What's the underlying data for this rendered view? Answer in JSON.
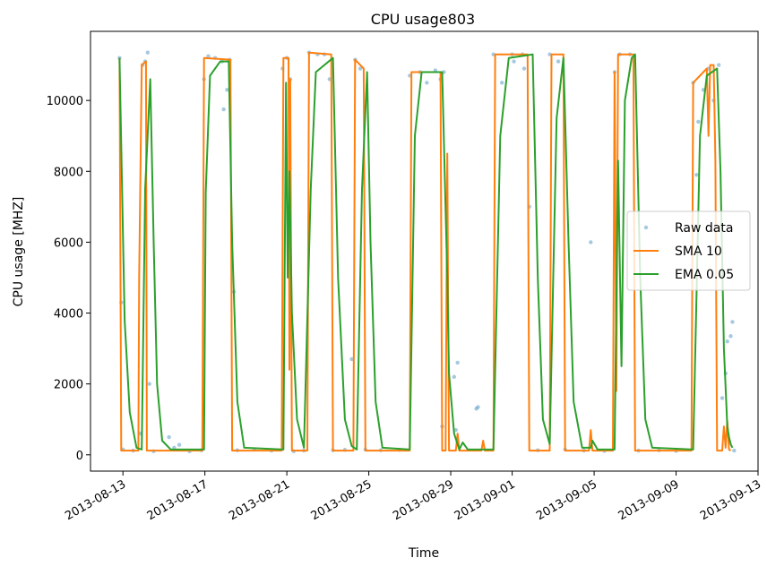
{
  "chart_data": {
    "type": "line",
    "title": "CPU usage803",
    "xlabel": "Time",
    "ylabel": "CPU usage [MHZ]",
    "x_range": [
      "2013-08-11T10:00",
      "2013-09-13T00:00"
    ],
    "ylim": [
      -460,
      11950
    ],
    "x_ticks": [
      {
        "date": "2013-08-13",
        "label": "2013-08-13"
      },
      {
        "date": "2013-08-17",
        "label": "2013-08-17"
      },
      {
        "date": "2013-08-21",
        "label": "2013-08-21"
      },
      {
        "date": "2013-08-25",
        "label": "2013-08-25"
      },
      {
        "date": "2013-08-29",
        "label": "2013-08-29"
      },
      {
        "date": "2013-09-01",
        "label": "2013-09-01"
      },
      {
        "date": "2013-09-05",
        "label": "2013-09-05"
      },
      {
        "date": "2013-09-09",
        "label": "2013-09-09"
      },
      {
        "date": "2013-09-13",
        "label": "2013-09-13"
      }
    ],
    "y_ticks": [
      0,
      2000,
      4000,
      6000,
      8000,
      10000
    ],
    "grid": false,
    "legend_position": "center-right",
    "series": [
      {
        "name": "Raw data",
        "kind": "scatter",
        "color": "#1f77b4",
        "opacity": 0.4,
        "points": [
          [
            "2013-08-12T20:00",
            11200
          ],
          [
            "2013-08-12T22:00",
            4300
          ],
          [
            "2013-08-13T00:00",
            150
          ],
          [
            "2013-08-13T12:00",
            120
          ],
          [
            "2013-08-13T20:00",
            600
          ],
          [
            "2013-08-13T23:00",
            11000
          ],
          [
            "2013-08-14T02:00",
            11100
          ],
          [
            "2013-08-14T05:00",
            11350
          ],
          [
            "2013-08-14T07:00",
            2000
          ],
          [
            "2013-08-14T12:00",
            100
          ],
          [
            "2013-08-15T06:00",
            500
          ],
          [
            "2013-08-15T12:00",
            200
          ],
          [
            "2013-08-15T18:00",
            280
          ],
          [
            "2013-08-16T06:00",
            100
          ],
          [
            "2013-08-16T20:00",
            130
          ],
          [
            "2013-08-16T23:00",
            10600
          ],
          [
            "2013-08-17T04:00",
            11250
          ],
          [
            "2013-08-17T12:00",
            11200
          ],
          [
            "2013-08-17T20:00",
            11100
          ],
          [
            "2013-08-17T22:00",
            9750
          ],
          [
            "2013-08-18T02:00",
            10300
          ],
          [
            "2013-08-18T05:00",
            11150
          ],
          [
            "2013-08-18T10:00",
            4600
          ],
          [
            "2013-08-18T14:00",
            130
          ],
          [
            "2013-08-19T10:00",
            150
          ],
          [
            "2013-08-20T06:00",
            120
          ],
          [
            "2013-08-20T19:00",
            10900
          ],
          [
            "2013-08-21T00:00",
            11200
          ],
          [
            "2013-08-21T04:00",
            10600
          ],
          [
            "2013-08-21T08:00",
            100
          ],
          [
            "2013-08-21T20:00",
            120
          ],
          [
            "2013-08-22T02:00",
            11350
          ],
          [
            "2013-08-22T12:00",
            11300
          ],
          [
            "2013-08-22T20:00",
            11300
          ],
          [
            "2013-08-23T02:00",
            10600
          ],
          [
            "2013-08-23T06:00",
            130
          ],
          [
            "2013-08-23T20:00",
            140
          ],
          [
            "2013-08-24T04:00",
            2700
          ],
          [
            "2013-08-24T08:00",
            11150
          ],
          [
            "2013-08-24T14:00",
            10900
          ],
          [
            "2013-08-24T20:00",
            150
          ],
          [
            "2013-08-25T14:00",
            130
          ],
          [
            "2013-08-26T12:00",
            140
          ],
          [
            "2013-08-27T00:00",
            10700
          ],
          [
            "2013-08-27T12:00",
            10800
          ],
          [
            "2013-08-27T20:00",
            10500
          ],
          [
            "2013-08-28T06:00",
            10850
          ],
          [
            "2013-08-28T12:00",
            10600
          ],
          [
            "2013-08-28T14:00",
            800
          ],
          [
            "2013-08-28T16:00",
            10800
          ],
          [
            "2013-08-29T04:00",
            2200
          ],
          [
            "2013-08-29T08:00",
            2600
          ],
          [
            "2013-08-29T06:00",
            700
          ],
          [
            "2013-08-30T06:00",
            1300
          ],
          [
            "2013-08-30T08:00",
            1350
          ],
          [
            "2013-08-31T02:00",
            11300
          ],
          [
            "2013-08-31T12:00",
            10500
          ],
          [
            "2013-09-01T00:00",
            11300
          ],
          [
            "2013-09-01T02:00",
            11100
          ],
          [
            "2013-09-01T12:00",
            11300
          ],
          [
            "2013-09-01T14:00",
            10900
          ],
          [
            "2013-09-01T20:00",
            7000
          ],
          [
            "2013-09-02T06:00",
            130
          ],
          [
            "2013-09-02T20:00",
            11300
          ],
          [
            "2013-09-03T06:00",
            11100
          ],
          [
            "2013-09-03T14:00",
            150
          ],
          [
            "2013-09-04T12:00",
            120
          ],
          [
            "2013-09-04T20:00",
            6000
          ],
          [
            "2013-09-05T12:00",
            110
          ],
          [
            "2013-09-06T00:00",
            10800
          ],
          [
            "2013-09-06T06:00",
            11300
          ],
          [
            "2013-09-06T18:00",
            11300
          ],
          [
            "2013-09-07T04:00",
            120
          ],
          [
            "2013-09-08T04:00",
            130
          ],
          [
            "2013-09-09T00:00",
            110
          ],
          [
            "2013-09-09T20:00",
            10500
          ],
          [
            "2013-09-10T00:00",
            7900
          ],
          [
            "2013-09-10T02:00",
            9400
          ],
          [
            "2013-09-10T08:00",
            10300
          ],
          [
            "2013-09-10T14:00",
            10900
          ],
          [
            "2013-09-10T20:00",
            10000
          ],
          [
            "2013-09-11T02:00",
            11000
          ],
          [
            "2013-09-11T06:00",
            1600
          ],
          [
            "2013-09-11T10:00",
            2300
          ],
          [
            "2013-09-11T12:00",
            3200
          ],
          [
            "2013-09-11T16:00",
            3350
          ],
          [
            "2013-09-11T18:00",
            3750
          ],
          [
            "2013-09-11T20:00",
            120
          ]
        ]
      },
      {
        "name": "SMA 10",
        "kind": "line",
        "color": "#ff7f0e",
        "points": [
          [
            "2013-08-12T20:00",
            11200
          ],
          [
            "2013-08-12T22:00",
            120
          ],
          [
            "2013-08-13T18:00",
            120
          ],
          [
            "2013-08-13T19:00",
            5000
          ],
          [
            "2013-08-13T22:00",
            11000
          ],
          [
            "2013-08-14T03:00",
            11100
          ],
          [
            "2013-08-14T04:00",
            120
          ],
          [
            "2013-08-16T21:00",
            120
          ],
          [
            "2013-08-16T23:00",
            11200
          ],
          [
            "2013-08-18T06:00",
            11150
          ],
          [
            "2013-08-18T08:00",
            120
          ],
          [
            "2013-08-20T18:00",
            120
          ],
          [
            "2013-08-20T20:00",
            11200
          ],
          [
            "2013-08-21T02:00",
            11200
          ],
          [
            "2013-08-21T03:00",
            2400
          ],
          [
            "2013-08-21T04:00",
            10600
          ],
          [
            "2013-08-21T06:00",
            120
          ],
          [
            "2013-08-22T00:00",
            120
          ],
          [
            "2013-08-22T02:00",
            11350
          ],
          [
            "2013-08-23T04:00",
            11300
          ],
          [
            "2013-08-23T06:00",
            120
          ],
          [
            "2013-08-24T06:00",
            120
          ],
          [
            "2013-08-24T08:00",
            11150
          ],
          [
            "2013-08-24T18:00",
            10900
          ],
          [
            "2013-08-24T20:00",
            120
          ],
          [
            "2013-08-27T00:00",
            120
          ],
          [
            "2013-08-27T02:00",
            10800
          ],
          [
            "2013-08-28T12:00",
            10800
          ],
          [
            "2013-08-28T14:00",
            120
          ],
          [
            "2013-08-28T18:00",
            120
          ],
          [
            "2013-08-28T20:00",
            8500
          ],
          [
            "2013-08-28T22:00",
            120
          ],
          [
            "2013-08-29T06:00",
            120
          ],
          [
            "2013-08-29T08:00",
            600
          ],
          [
            "2013-08-29T10:00",
            120
          ],
          [
            "2013-08-30T12:00",
            120
          ],
          [
            "2013-08-30T14:00",
            400
          ],
          [
            "2013-08-30T16:00",
            120
          ],
          [
            "2013-08-31T02:00",
            120
          ],
          [
            "2013-08-31T04:00",
            11300
          ],
          [
            "2013-09-01T18:00",
            11300
          ],
          [
            "2013-09-01T20:00",
            120
          ],
          [
            "2013-09-02T20:00",
            120
          ],
          [
            "2013-09-02T22:00",
            11300
          ],
          [
            "2013-09-03T12:00",
            11300
          ],
          [
            "2013-09-03T14:00",
            120
          ],
          [
            "2013-09-04T18:00",
            120
          ],
          [
            "2013-09-04T20:00",
            700
          ],
          [
            "2013-09-04T22:00",
            120
          ],
          [
            "2013-09-05T22:00",
            120
          ],
          [
            "2013-09-06T00:00",
            10800
          ],
          [
            "2013-09-06T02:00",
            1800
          ],
          [
            "2013-09-06T04:00",
            11300
          ],
          [
            "2013-09-06T22:00",
            11300
          ],
          [
            "2013-09-07T00:00",
            120
          ],
          [
            "2013-09-09T18:00",
            120
          ],
          [
            "2013-09-09T20:00",
            10500
          ],
          [
            "2013-09-10T12:00",
            10900
          ],
          [
            "2013-09-10T14:00",
            9000
          ],
          [
            "2013-09-10T16:00",
            11000
          ],
          [
            "2013-09-10T20:00",
            11000
          ],
          [
            "2013-09-10T22:00",
            8300
          ],
          [
            "2013-09-11T00:00",
            120
          ],
          [
            "2013-09-11T06:00",
            120
          ],
          [
            "2013-09-11T08:00",
            800
          ],
          [
            "2013-09-11T10:00",
            200
          ],
          [
            "2013-09-11T12:00",
            950
          ],
          [
            "2013-09-11T14:00",
            150
          ],
          [
            "2013-09-11T16:00",
            120
          ]
        ]
      },
      {
        "name": "EMA 0.05",
        "kind": "line",
        "color": "#2ca02c",
        "points": [
          [
            "2013-08-12T20:00",
            11200
          ],
          [
            "2013-08-13T02:00",
            3800
          ],
          [
            "2013-08-13T08:00",
            1200
          ],
          [
            "2013-08-13T16:00",
            200
          ],
          [
            "2013-08-13T22:00",
            150
          ],
          [
            "2013-08-14T02:00",
            7500
          ],
          [
            "2013-08-14T08:00",
            10600
          ],
          [
            "2013-08-14T12:00",
            6000
          ],
          [
            "2013-08-14T16:00",
            2000
          ],
          [
            "2013-08-14T22:00",
            400
          ],
          [
            "2013-08-15T08:00",
            150
          ],
          [
            "2013-08-16T23:00",
            150
          ],
          [
            "2013-08-17T01:00",
            7400
          ],
          [
            "2013-08-17T06:00",
            10700
          ],
          [
            "2013-08-17T18:00",
            11100
          ],
          [
            "2013-08-18T04:00",
            11100
          ],
          [
            "2013-08-18T08:00",
            6000
          ],
          [
            "2013-08-18T14:00",
            1500
          ],
          [
            "2013-08-18T22:00",
            200
          ],
          [
            "2013-08-20T20:00",
            150
          ],
          [
            "2013-08-20T23:00",
            10500
          ],
          [
            "2013-08-21T01:00",
            5000
          ],
          [
            "2013-08-21T03:00",
            8000
          ],
          [
            "2013-08-21T06:00",
            4000
          ],
          [
            "2013-08-21T12:00",
            1000
          ],
          [
            "2013-08-21T20:00",
            200
          ],
          [
            "2013-08-22T04:00",
            7500
          ],
          [
            "2013-08-22T10:00",
            10800
          ],
          [
            "2013-08-23T06:00",
            11200
          ],
          [
            "2013-08-23T12:00",
            5000
          ],
          [
            "2013-08-23T20:00",
            1000
          ],
          [
            "2013-08-24T04:00",
            250
          ],
          [
            "2013-08-24T10:00",
            150
          ],
          [
            "2013-08-24T16:00",
            7500
          ],
          [
            "2013-08-24T22:00",
            10800
          ],
          [
            "2013-08-25T02:00",
            6000
          ],
          [
            "2013-08-25T08:00",
            1500
          ],
          [
            "2013-08-25T16:00",
            200
          ],
          [
            "2013-08-27T00:00",
            150
          ],
          [
            "2013-08-27T06:00",
            9000
          ],
          [
            "2013-08-27T14:00",
            10800
          ],
          [
            "2013-08-28T14:00",
            10800
          ],
          [
            "2013-08-28T20:00",
            5000
          ],
          [
            "2013-08-28T22:00",
            2300
          ],
          [
            "2013-08-29T04:00",
            600
          ],
          [
            "2013-08-29T10:00",
            150
          ],
          [
            "2013-08-29T14:00",
            350
          ],
          [
            "2013-08-29T20:00",
            150
          ],
          [
            "2013-08-31T02:00",
            150
          ],
          [
            "2013-08-31T10:00",
            9000
          ],
          [
            "2013-08-31T20:00",
            11200
          ],
          [
            "2013-09-02T00:00",
            11300
          ],
          [
            "2013-09-02T06:00",
            5000
          ],
          [
            "2013-09-02T12:00",
            1000
          ],
          [
            "2013-09-02T20:00",
            300
          ],
          [
            "2013-09-03T04:00",
            9500
          ],
          [
            "2013-09-03T12:00",
            11200
          ],
          [
            "2013-09-03T18:00",
            6000
          ],
          [
            "2013-09-04T00:00",
            1500
          ],
          [
            "2013-09-04T10:00",
            200
          ],
          [
            "2013-09-04T20:00",
            200
          ],
          [
            "2013-09-04T22:00",
            400
          ],
          [
            "2013-09-05T04:00",
            150
          ],
          [
            "2013-09-06T00:00",
            150
          ],
          [
            "2013-09-06T04:00",
            8300
          ],
          [
            "2013-09-06T08:00",
            2500
          ],
          [
            "2013-09-06T12:00",
            10000
          ],
          [
            "2013-09-06T20:00",
            11200
          ],
          [
            "2013-09-07T00:00",
            11300
          ],
          [
            "2013-09-07T06:00",
            5000
          ],
          [
            "2013-09-07T12:00",
            1000
          ],
          [
            "2013-09-07T20:00",
            200
          ],
          [
            "2013-09-09T20:00",
            150
          ],
          [
            "2013-09-10T04:00",
            9000
          ],
          [
            "2013-09-10T12:00",
            10700
          ],
          [
            "2013-09-11T00:00",
            10900
          ],
          [
            "2013-09-11T04:00",
            8000
          ],
          [
            "2013-09-11T08:00",
            3000
          ],
          [
            "2013-09-11T12:00",
            800
          ],
          [
            "2013-09-11T14:00",
            500
          ],
          [
            "2013-09-11T16:00",
            300
          ],
          [
            "2013-09-11T18:00",
            200
          ]
        ]
      }
    ]
  }
}
